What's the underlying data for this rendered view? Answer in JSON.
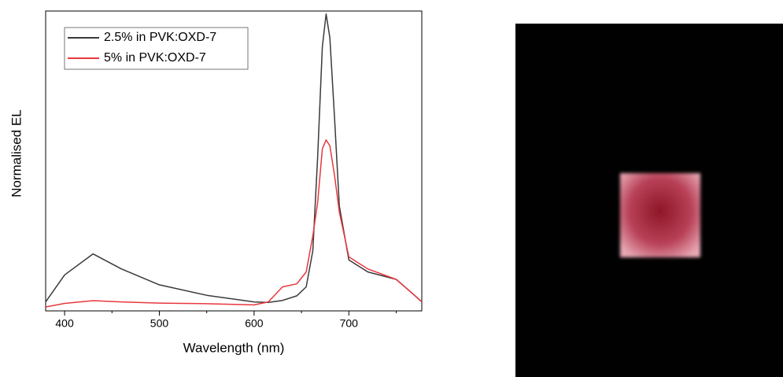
{
  "chart_data": {
    "type": "line",
    "xlabel": "Wavelength (nm)",
    "ylabel": "Normalised EL",
    "x": [
      380,
      400,
      430,
      460,
      500,
      550,
      600,
      615,
      630,
      645,
      655,
      662,
      667,
      672,
      676,
      680,
      685,
      690,
      700,
      720,
      750,
      770,
      777
    ],
    "series": [
      {
        "name": "2.5% in PVK:OXD-7",
        "color": "#3a3a3a",
        "values": [
          0.03,
          0.12,
          0.19,
          0.14,
          0.087,
          0.052,
          0.03,
          0.028,
          0.035,
          0.05,
          0.08,
          0.2,
          0.51,
          0.88,
          0.99,
          0.91,
          0.64,
          0.35,
          0.17,
          0.13,
          0.105,
          0.05,
          0.03
        ]
      },
      {
        "name": "5% in PVK:OXD-7",
        "color": "#e8383d",
        "values": [
          0.013,
          0.025,
          0.034,
          0.03,
          0.026,
          0.024,
          0.02,
          0.03,
          0.08,
          0.09,
          0.13,
          0.25,
          0.36,
          0.54,
          0.57,
          0.55,
          0.45,
          0.33,
          0.18,
          0.14,
          0.105,
          0.05,
          0.03
        ]
      }
    ],
    "xlim": [
      380,
      777
    ],
    "xticks": [
      400,
      500,
      600,
      700
    ],
    "xminorticks": [
      450,
      550,
      650,
      750
    ],
    "ylim": [
      0,
      1
    ],
    "legend": "upper left"
  }
}
